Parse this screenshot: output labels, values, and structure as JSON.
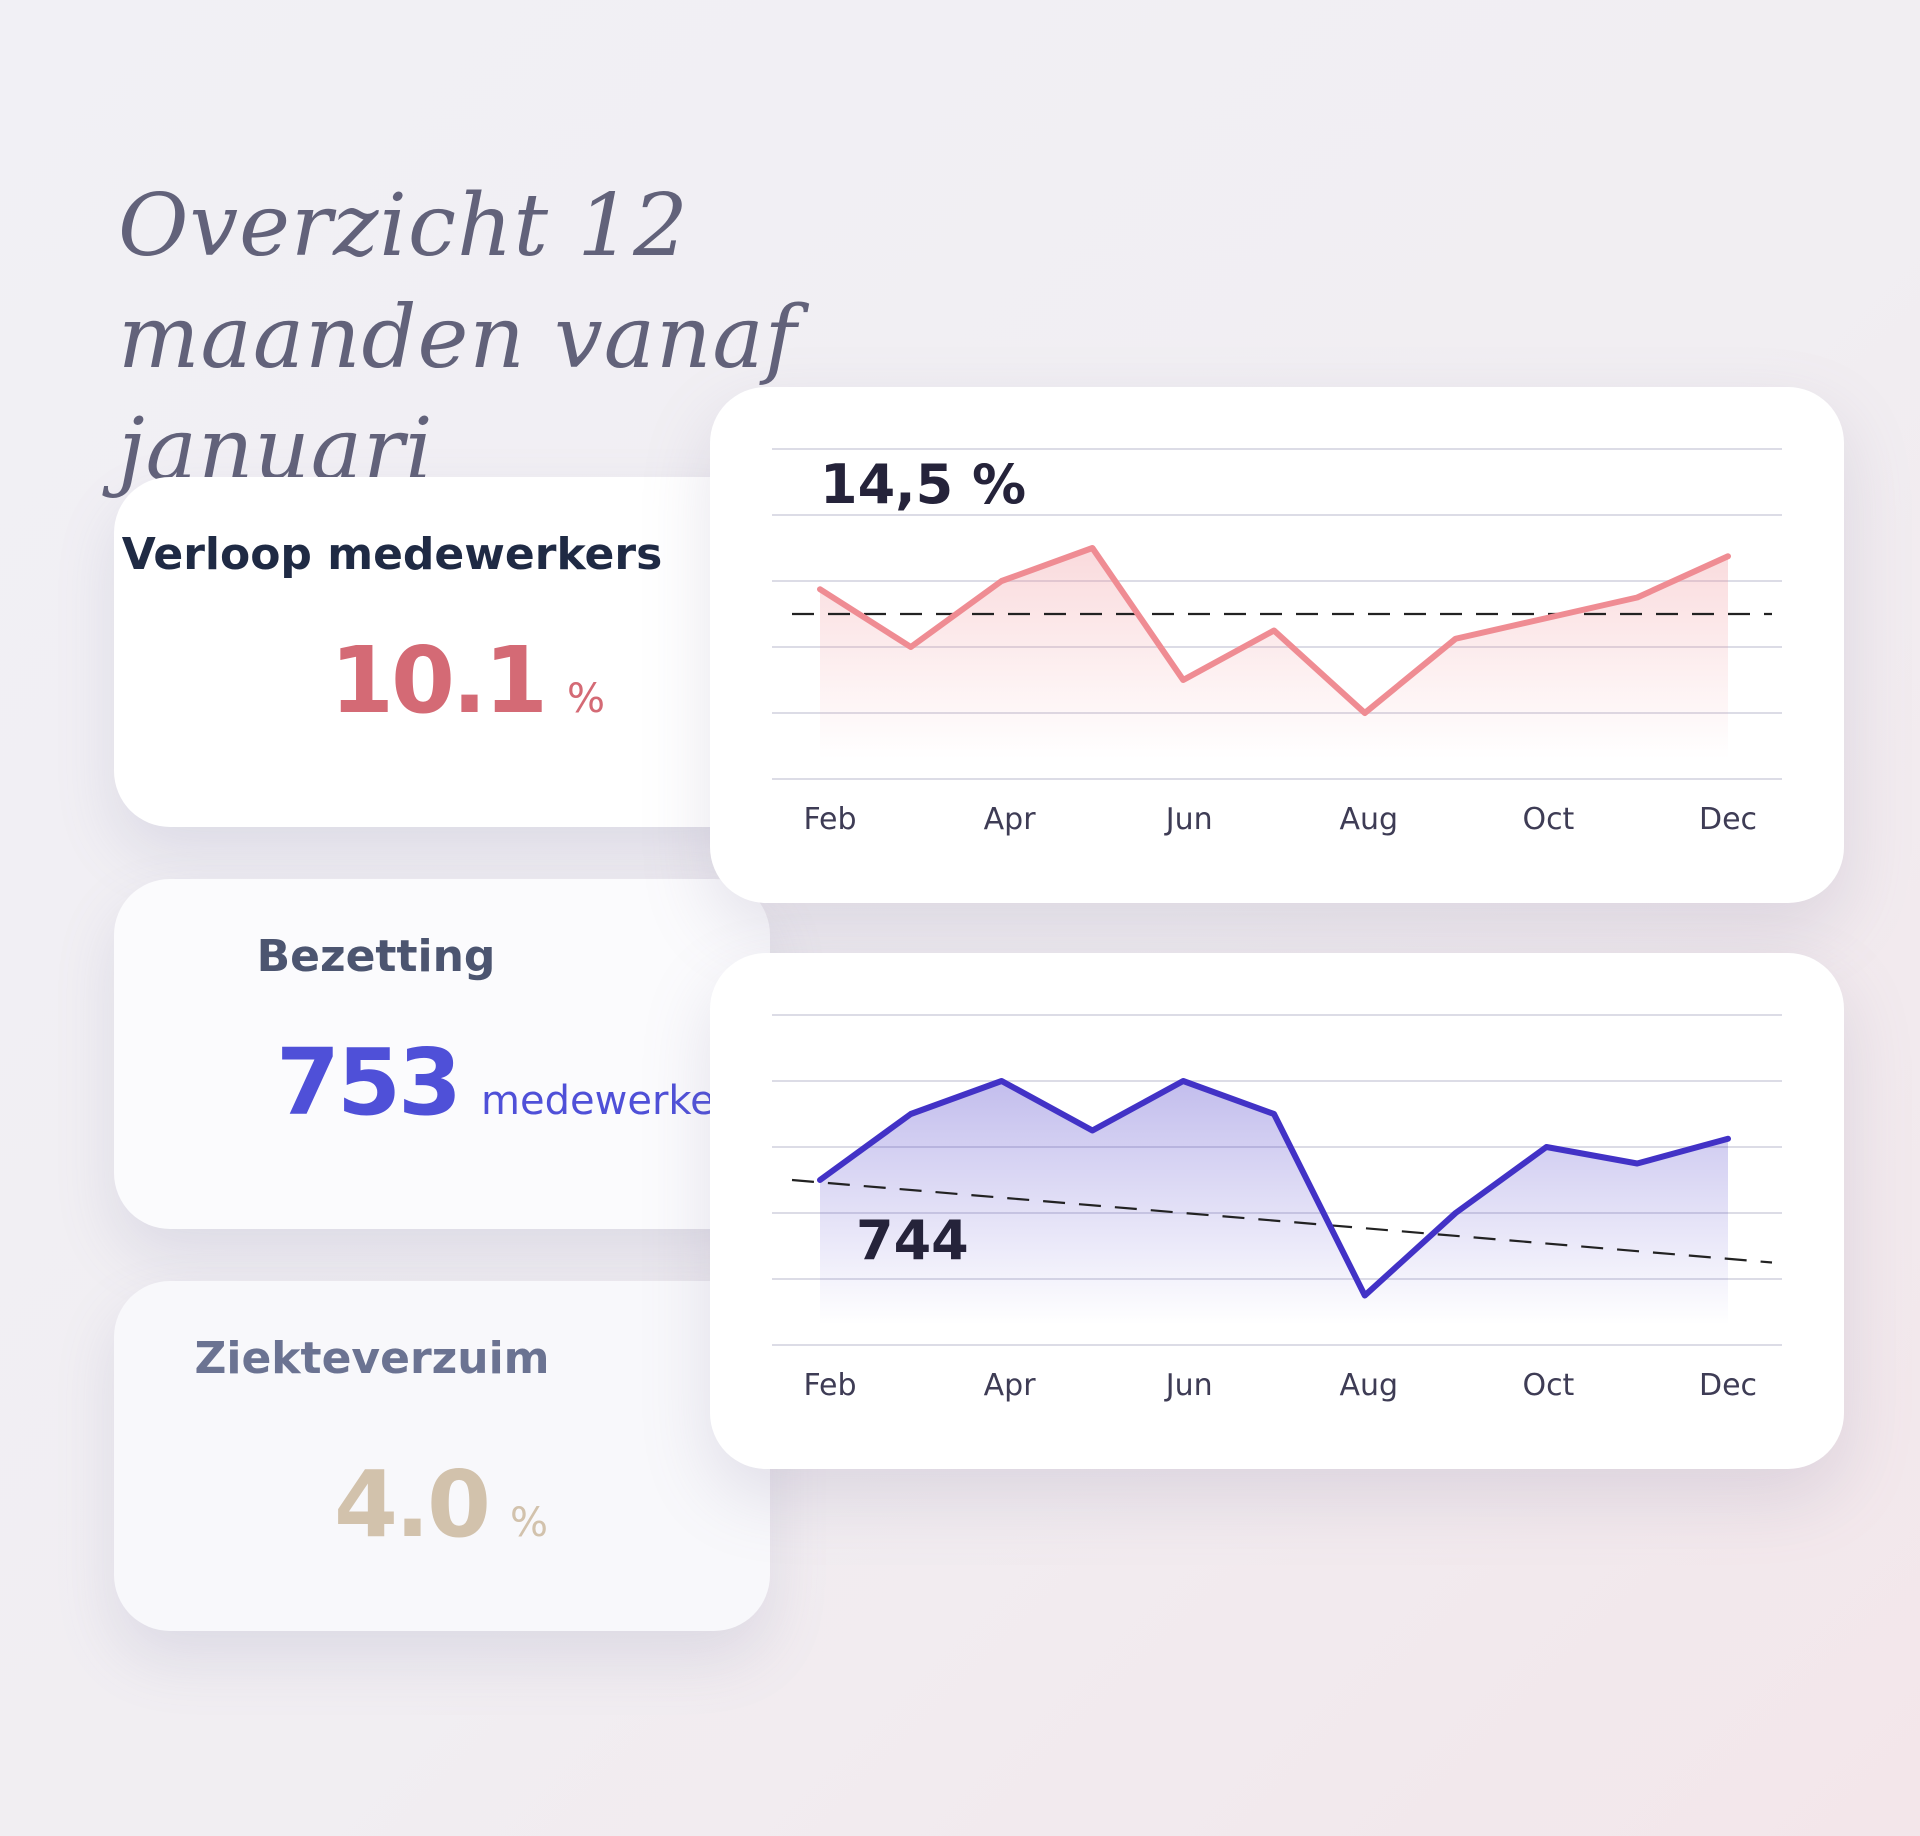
{
  "title": "Overzicht 12 maanden vanaf januari",
  "cards": [
    {
      "label": "Verloop medewerkers",
      "value": "10.1",
      "unit": "%"
    },
    {
      "label": "Bezetting",
      "value": "753",
      "unit": "medewerkers"
    },
    {
      "label": "Ziekteverzuim",
      "value": "4.0",
      "unit": "%"
    }
  ],
  "colors": {
    "verloop": "#ef8c93",
    "bezetting": "#4232c6",
    "ziekteverzuim": "#d2c2ac",
    "title": "#62627a"
  },
  "chart_data": [
    {
      "type": "area",
      "x": [
        "Feb",
        "Mar",
        "Apr",
        "May",
        "Jun",
        "Jul",
        "Aug",
        "Sep",
        "Oct",
        "Nov",
        "Dec"
      ],
      "tick_labels": [
        "Feb",
        "Apr",
        "Jun",
        "Aug",
        "Oct",
        "Dec"
      ],
      "values": [
        13.3,
        12.6,
        13.4,
        13.8,
        12.2,
        12.8,
        11.8,
        12.7,
        12.95,
        13.2,
        13.7
      ],
      "annotation": "14,5 %",
      "reference_line": {
        "style": "dashed",
        "start": 13.0,
        "end": 13.0
      },
      "ylim": [
        11.0,
        15.0
      ],
      "grid": true,
      "legend": "none"
    },
    {
      "type": "area",
      "x": [
        "Feb",
        "Mar",
        "Apr",
        "May",
        "Jun",
        "Jul",
        "Aug",
        "Sep",
        "Oct",
        "Nov",
        "Dec"
      ],
      "tick_labels": [
        "Feb",
        "Apr",
        "Jun",
        "Aug",
        "Oct",
        "Dec"
      ],
      "values": [
        750,
        754,
        756,
        753,
        756,
        754,
        743,
        748,
        752,
        751,
        752.5
      ],
      "annotation": "744",
      "reference_line": {
        "style": "dashed",
        "start": 750,
        "end": 745
      },
      "ylim": [
        740,
        760
      ],
      "grid": true,
      "legend": "none"
    }
  ]
}
